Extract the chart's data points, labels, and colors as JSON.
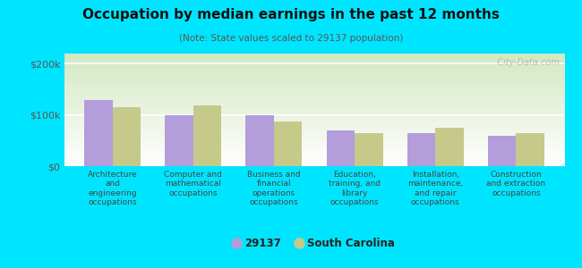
{
  "title": "Occupation by median earnings in the past 12 months",
  "subtitle": "(Note: State values scaled to 29137 population)",
  "categories": [
    "Architecture\nand\nengineering\noccupations",
    "Computer and\nmathematical\noccupations",
    "Business and\nfinancial\noperations\noccupations",
    "Education,\ntraining, and\nlibrary\noccupations",
    "Installation,\nmaintenance,\nand repair\noccupations",
    "Construction\nand extraction\noccupations"
  ],
  "values_29137": [
    130000,
    100000,
    100000,
    70000,
    65000,
    60000
  ],
  "values_sc": [
    115000,
    118000,
    88000,
    65000,
    75000,
    65000
  ],
  "color_29137": "#b39ddb",
  "color_sc": "#c5c98a",
  "legend_labels": [
    "29137",
    "South Carolina"
  ],
  "yticks": [
    0,
    100000,
    200000
  ],
  "ytick_labels": [
    "$0",
    "$100k",
    "$200k"
  ],
  "ylim": [
    0,
    220000
  ],
  "background_color": "#00e5ff",
  "watermark": "  City-Data.com"
}
